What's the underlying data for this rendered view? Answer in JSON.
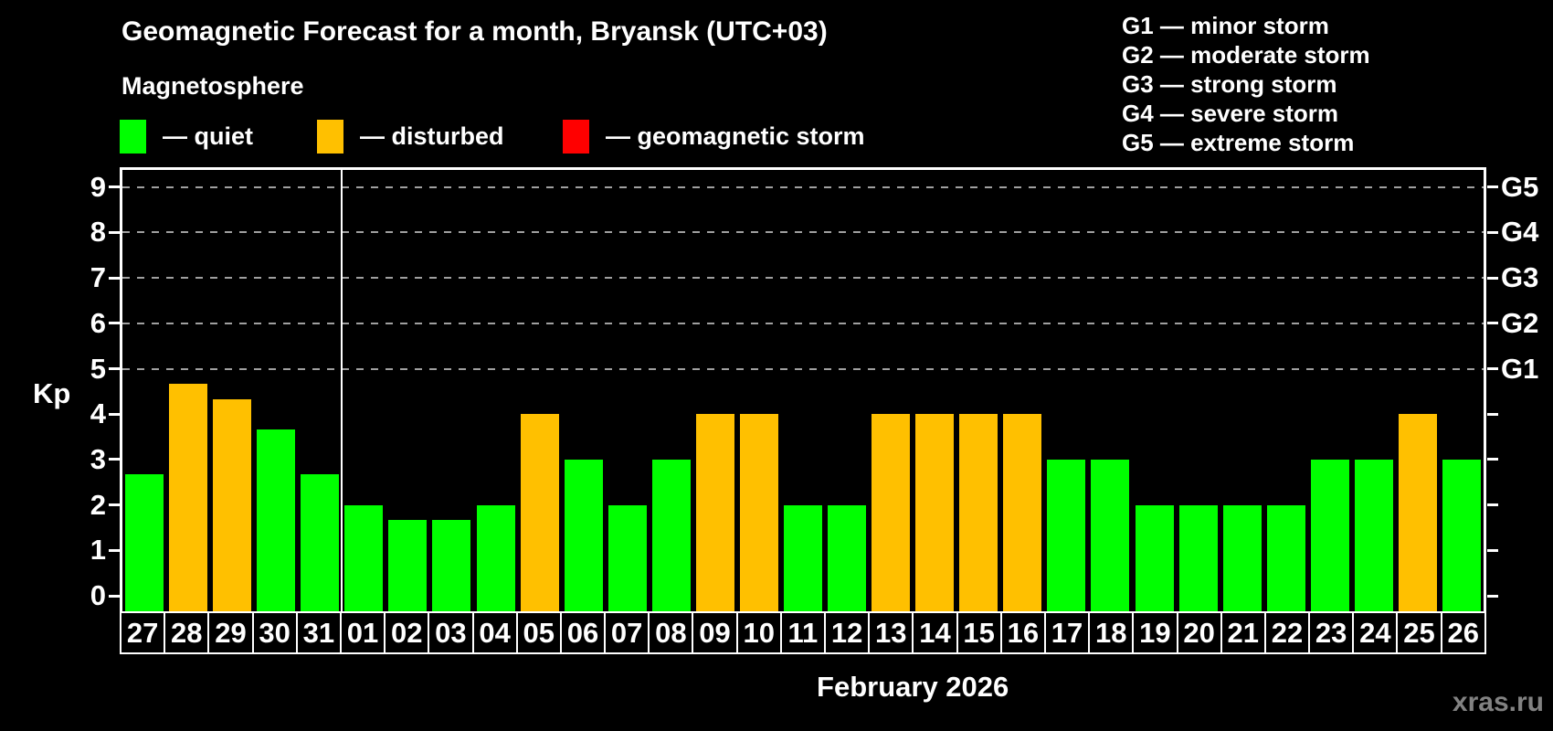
{
  "title": "Geomagnetic Forecast for a month, Bryansk (UTC+03)",
  "subtitle": "Magnetosphere",
  "legend": [
    {
      "name": "quiet",
      "color": "#00ff00",
      "label": "— quiet"
    },
    {
      "name": "disturbed",
      "color": "#ffc000",
      "label": "— disturbed"
    },
    {
      "name": "geomagnetic-storm",
      "color": "#ff0000",
      "label": "— geomagnetic storm"
    }
  ],
  "storm_scale_legend": [
    "G1 — minor storm",
    "G2 — moderate storm",
    "G3 — strong storm",
    "G4 — severe storm",
    "G5 — extreme storm"
  ],
  "watermark": "xras.ru",
  "chart_data": {
    "type": "bar",
    "title": "Geomagnetic Forecast for a month, Bryansk (UTC+03)",
    "ylabel": "Kp",
    "xlabel": "February 2026",
    "ylim": [
      0,
      9.4
    ],
    "yticks": [
      0,
      1,
      2,
      3,
      4,
      5,
      6,
      7,
      8,
      9
    ],
    "gridline_values": [
      5,
      6,
      7,
      8,
      9
    ],
    "grid": "dashed horizontal at storm levels only",
    "legend_position": "top-left",
    "right_axis": [
      {
        "value": 5,
        "label": "G1"
      },
      {
        "value": 6,
        "label": "G2"
      },
      {
        "value": 7,
        "label": "G3"
      },
      {
        "value": 8,
        "label": "G4"
      },
      {
        "value": 9,
        "label": "G5"
      }
    ],
    "categories": [
      "27",
      "28",
      "29",
      "30",
      "31",
      "01",
      "02",
      "03",
      "04",
      "05",
      "06",
      "07",
      "08",
      "09",
      "10",
      "11",
      "12",
      "13",
      "14",
      "15",
      "16",
      "17",
      "18",
      "19",
      "20",
      "21",
      "22",
      "23",
      "24",
      "25",
      "26"
    ],
    "values": [
      2.67,
      4.67,
      4.33,
      3.67,
      2.67,
      2,
      1.67,
      1.67,
      2,
      4,
      3,
      2,
      3,
      4,
      4,
      2,
      2,
      4,
      4,
      4,
      4,
      3,
      3,
      2,
      2,
      2,
      2,
      3,
      3,
      4,
      3
    ],
    "states": [
      "quiet",
      "disturbed",
      "disturbed",
      "quiet",
      "quiet",
      "quiet",
      "quiet",
      "quiet",
      "quiet",
      "disturbed",
      "quiet",
      "quiet",
      "quiet",
      "disturbed",
      "disturbed",
      "quiet",
      "quiet",
      "disturbed",
      "disturbed",
      "disturbed",
      "disturbed",
      "quiet",
      "quiet",
      "quiet",
      "quiet",
      "quiet",
      "quiet",
      "quiet",
      "quiet",
      "disturbed",
      "quiet"
    ],
    "state_colors": {
      "quiet": "#00ff00",
      "disturbed": "#ffc000",
      "storm": "#ff0000"
    },
    "separator_after_index": 4
  }
}
